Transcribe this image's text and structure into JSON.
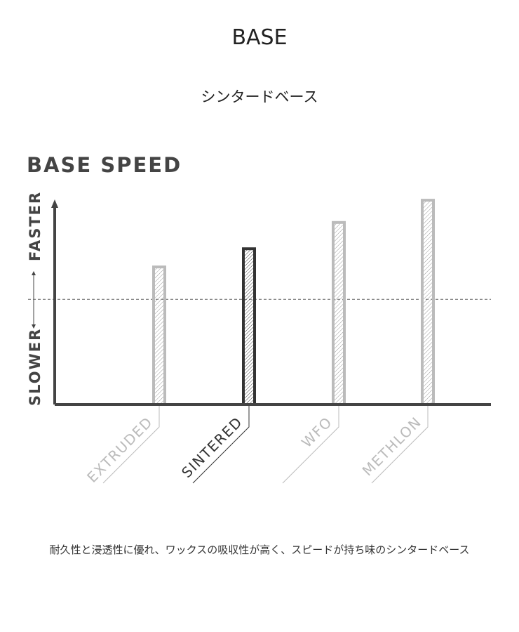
{
  "header": {
    "title": "BASE",
    "subtitle": "シンタードベース"
  },
  "caption": "耐久性と浸透性に優れ、ワックスの吸収性が高く、スピードが持ち味のシンタードベース",
  "chart_data": {
    "type": "bar",
    "title": "BASE SPEED",
    "ylabel_top": "FASTER",
    "ylabel_bottom": "SLOWER",
    "categories": [
      "EXTRUDED",
      "SINTERED",
      "WFO",
      "METHLON"
    ],
    "values": [
      68,
      77,
      90,
      101
    ],
    "highlight": "SINTERED",
    "reference_line": 52,
    "ylim": [
      0,
      100
    ],
    "grid": false,
    "colors": {
      "highlight": "#333333",
      "other": "#bbbbbb",
      "axis": "#444444"
    }
  }
}
